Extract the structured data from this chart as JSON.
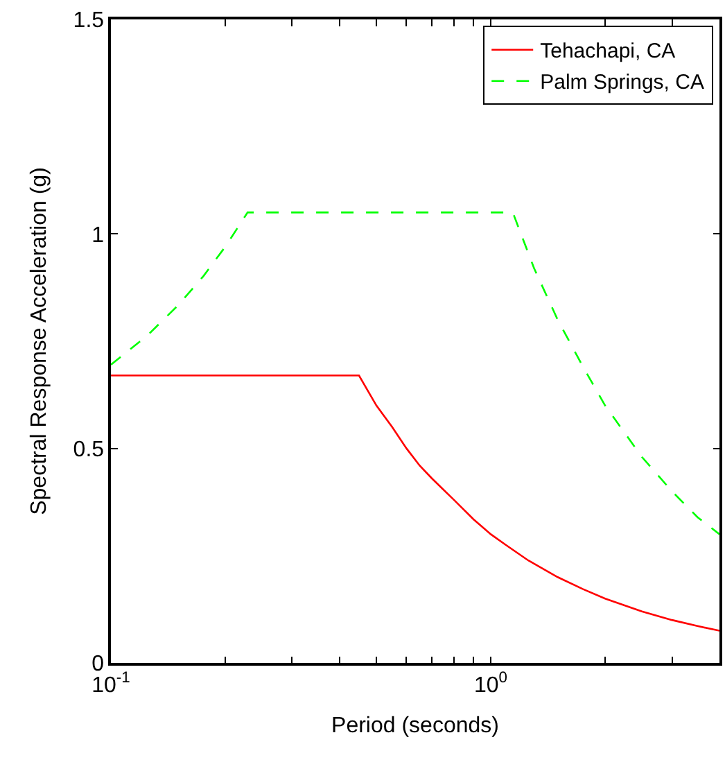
{
  "chart_data": {
    "type": "line",
    "xlabel": "Period (seconds)",
    "ylabel": "Spectral Response Acceleration (g)",
    "log": "x",
    "xlim": [
      0.1,
      4
    ],
    "ylim": [
      0,
      1.5
    ],
    "xticks": [
      {
        "value": 0.1,
        "label": "10$^{-1}$"
      },
      {
        "value": 0.2,
        "label": null
      },
      {
        "value": 0.3,
        "label": null
      },
      {
        "value": 0.4,
        "label": null
      },
      {
        "value": 0.5,
        "label": null
      },
      {
        "value": 0.6,
        "label": null
      },
      {
        "value": 0.7,
        "label": null
      },
      {
        "value": 0.8,
        "label": null
      },
      {
        "value": 0.9,
        "label": null
      },
      {
        "value": 1,
        "label": "10$^{0}$"
      },
      {
        "value": 2,
        "label": null
      },
      {
        "value": 3,
        "label": null
      },
      {
        "value": 4,
        "label": null
      }
    ],
    "yticks": [
      0,
      0.5,
      1,
      1.5
    ],
    "legend": "top right",
    "series": [
      {
        "name": "Tehachapi, CA",
        "color": "#ff0000",
        "line_style": "solid",
        "x": [
          0.1,
          0.45,
          0.5,
          0.55,
          0.6,
          0.65,
          0.7,
          0.8,
          0.9,
          1,
          1.1,
          1.25,
          1.5,
          1.75,
          2,
          2.5,
          3,
          3.5,
          4
        ],
        "values": [
          0.67,
          0.67,
          0.6,
          0.55,
          0.5,
          0.46,
          0.43,
          0.38,
          0.335,
          0.3,
          0.274,
          0.24,
          0.2,
          0.172,
          0.15,
          0.12,
          0.1,
          0.086,
          0.075
        ]
      },
      {
        "name": "Palm Springs, CA",
        "color": "#00ff00",
        "line_style": "dashed",
        "x": [
          0.1,
          0.125,
          0.15,
          0.175,
          0.2,
          0.229,
          1.143,
          1.3,
          1.5,
          1.75,
          2,
          2.5,
          3,
          3.5,
          4
        ],
        "values": [
          0.695,
          0.764,
          0.833,
          0.901,
          0.97,
          1.05,
          1.05,
          0.92,
          0.8,
          0.69,
          0.6,
          0.48,
          0.4,
          0.34,
          0.3
        ]
      }
    ]
  }
}
